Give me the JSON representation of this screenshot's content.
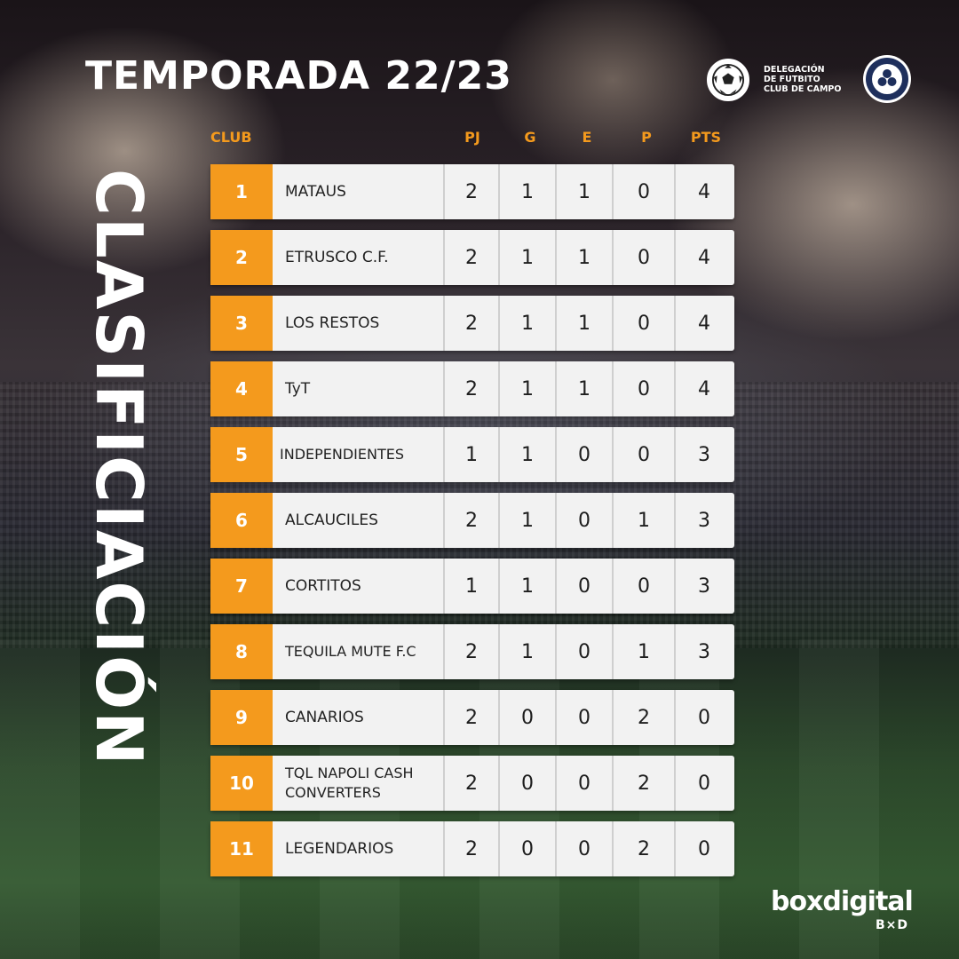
{
  "title": "TEMPORADA 22/23",
  "vertical_title": "CLASIFICIACIÓN",
  "logo": {
    "ball_icon": "soccer-ball-icon",
    "line1": "DELEGACIÓN",
    "line2": "DE FUTBITO",
    "line3": "CLUB DE CAMPO",
    "club_badge_icon": "club-crest-icon"
  },
  "colors": {
    "accent": "#f49a1d",
    "row_bg": "#f2f2f2",
    "text": "#222222"
  },
  "table": {
    "headers": {
      "club": "CLUB",
      "pj": "PJ",
      "g": "G",
      "e": "E",
      "p": "P",
      "pts": "PTS"
    },
    "rows": [
      {
        "pos": "1",
        "club": "MATAUS",
        "pj": "2",
        "g": "1",
        "e": "1",
        "p": "0",
        "pts": "4"
      },
      {
        "pos": "2",
        "club": "ETRUSCO C.F.",
        "pj": "2",
        "g": "1",
        "e": "1",
        "p": "0",
        "pts": "4"
      },
      {
        "pos": "3",
        "club": "LOS RESTOS",
        "pj": "2",
        "g": "1",
        "e": "1",
        "p": "0",
        "pts": "4"
      },
      {
        "pos": "4",
        "club": "TyT",
        "pj": "2",
        "g": "1",
        "e": "1",
        "p": "0",
        "pts": "4"
      },
      {
        "pos": "5",
        "club": "INDEPENDIENTES",
        "pj": "1",
        "g": "1",
        "e": "0",
        "p": "0",
        "pts": "3"
      },
      {
        "pos": "6",
        "club": "ALCAUCILES",
        "pj": "2",
        "g": "1",
        "e": "0",
        "p": "1",
        "pts": "3"
      },
      {
        "pos": "7",
        "club": "CORTITOS",
        "pj": "1",
        "g": "1",
        "e": "0",
        "p": "0",
        "pts": "3"
      },
      {
        "pos": "8",
        "club": "TEQUILA MUTE F.C",
        "pj": "2",
        "g": "1",
        "e": "0",
        "p": "1",
        "pts": "3"
      },
      {
        "pos": "9",
        "club": "CANARIOS",
        "pj": "2",
        "g": "0",
        "e": "0",
        "p": "2",
        "pts": "0"
      },
      {
        "pos": "10",
        "club": "TQL NAPOLI CASH CONVERTERS",
        "pj": "2",
        "g": "0",
        "e": "0",
        "p": "2",
        "pts": "0"
      },
      {
        "pos": "11",
        "club": "LEGENDARIOS",
        "pj": "2",
        "g": "0",
        "e": "0",
        "p": "2",
        "pts": "0"
      }
    ]
  },
  "brand": {
    "name": "boxdigital",
    "mark": "B×D"
  }
}
